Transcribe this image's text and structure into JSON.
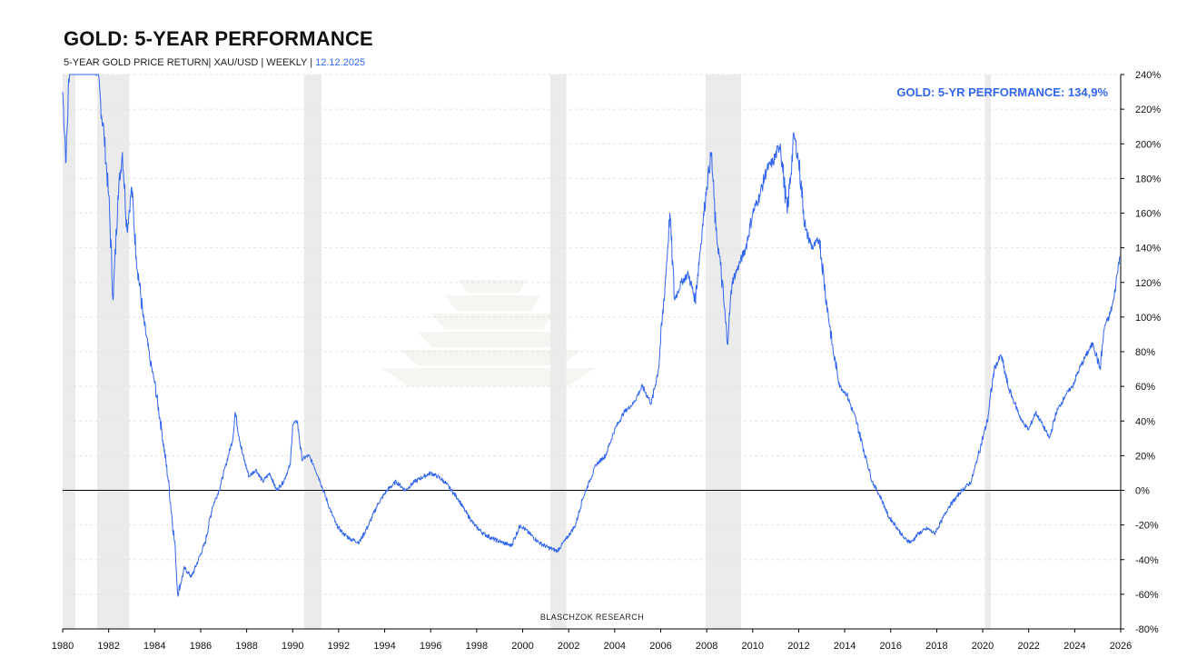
{
  "header": {
    "title": "GOLD: 5-YEAR PERFORMANCE",
    "subtitle": "5-YEAR GOLD PRICE RETURN| XAU/USD | WEEKLY |",
    "date": "12.12.2025"
  },
  "credit": "BLASCHZOK   RESEARCH",
  "colors": {
    "series": "#3366ee",
    "recession": "#ebebeb",
    "axis": "#000000"
  },
  "chart_data": {
    "type": "line",
    "title": "GOLD: 5-YEAR PERFORMANCE",
    "frequency": "weekly",
    "xlim": [
      1980,
      2026
    ],
    "ylim": [
      -80,
      240
    ],
    "yunit": "%",
    "x_ticks": [
      "1980",
      "1982",
      "1984",
      "1986",
      "1988",
      "1990",
      "1992",
      "1994",
      "1996",
      "1998",
      "2000",
      "2002",
      "2004",
      "2006",
      "2008",
      "2010",
      "2012",
      "2014",
      "2016",
      "2018",
      "2020",
      "2022",
      "2024",
      "2026"
    ],
    "y_ticks": [
      "240%",
      "220%",
      "200%",
      "180%",
      "160%",
      "140%",
      "120%",
      "100%",
      "80%",
      "60%",
      "40%",
      "20%",
      "0%",
      "-20%",
      "-40%",
      "-60%",
      "-80%"
    ],
    "grid": true,
    "zero_line": true,
    "annotation": "GOLD: 5-YR PERFORMANCE: 134,9%",
    "last_value": 134.9,
    "recessions": [
      [
        1980.0,
        1980.55
      ],
      [
        1981.5,
        1982.9
      ],
      [
        1990.5,
        1991.25
      ],
      [
        2001.2,
        2001.9
      ],
      [
        2007.95,
        2009.5
      ],
      [
        2020.1,
        2020.35
      ]
    ],
    "series": [
      {
        "points": [
          [
            1980.0,
            230
          ],
          [
            1980.15,
            190
          ],
          [
            1980.3,
            250
          ],
          [
            1980.5,
            245
          ],
          [
            1981.0,
            255
          ],
          [
            1981.5,
            242
          ],
          [
            1981.8,
            205
          ],
          [
            1982.0,
            170
          ],
          [
            1982.2,
            110
          ],
          [
            1982.4,
            170
          ],
          [
            1982.6,
            195
          ],
          [
            1982.8,
            150
          ],
          [
            1983.0,
            175
          ],
          [
            1983.2,
            135
          ],
          [
            1983.5,
            100
          ],
          [
            1983.8,
            75
          ],
          [
            1984.0,
            62
          ],
          [
            1984.3,
            35
          ],
          [
            1984.6,
            5
          ],
          [
            1984.9,
            -35
          ],
          [
            1985.0,
            -60
          ],
          [
            1985.3,
            -45
          ],
          [
            1985.6,
            -50
          ],
          [
            1985.9,
            -40
          ],
          [
            1986.2,
            -30
          ],
          [
            1986.5,
            -10
          ],
          [
            1986.8,
            0
          ],
          [
            1987.1,
            15
          ],
          [
            1987.4,
            30
          ],
          [
            1987.5,
            45
          ],
          [
            1987.8,
            22
          ],
          [
            1988.1,
            8
          ],
          [
            1988.4,
            12
          ],
          [
            1988.7,
            5
          ],
          [
            1989.0,
            10
          ],
          [
            1989.3,
            0
          ],
          [
            1989.6,
            5
          ],
          [
            1989.9,
            15
          ],
          [
            1990.0,
            38
          ],
          [
            1990.2,
            40
          ],
          [
            1990.4,
            18
          ],
          [
            1990.7,
            20
          ],
          [
            1990.9,
            15
          ],
          [
            1991.2,
            5
          ],
          [
            1991.6,
            -10
          ],
          [
            1991.9,
            -20
          ],
          [
            1992.2,
            -25
          ],
          [
            1992.5,
            -28
          ],
          [
            1992.9,
            -30
          ],
          [
            1993.3,
            -20
          ],
          [
            1993.7,
            -8
          ],
          [
            1994.1,
            0
          ],
          [
            1994.5,
            5
          ],
          [
            1994.9,
            0
          ],
          [
            1995.3,
            5
          ],
          [
            1995.7,
            8
          ],
          [
            1996.0,
            10
          ],
          [
            1996.3,
            8
          ],
          [
            1996.6,
            5
          ],
          [
            1996.9,
            0
          ],
          [
            1997.2,
            -5
          ],
          [
            1997.5,
            -12
          ],
          [
            1997.9,
            -20
          ],
          [
            1998.3,
            -25
          ],
          [
            1998.7,
            -28
          ],
          [
            1999.1,
            -30
          ],
          [
            1999.5,
            -32
          ],
          [
            1999.9,
            -20
          ],
          [
            2000.3,
            -25
          ],
          [
            2000.7,
            -30
          ],
          [
            2001.1,
            -33
          ],
          [
            2001.5,
            -35
          ],
          [
            2001.9,
            -28
          ],
          [
            2002.3,
            -20
          ],
          [
            2002.6,
            -5
          ],
          [
            2002.9,
            5
          ],
          [
            2003.2,
            15
          ],
          [
            2003.6,
            20
          ],
          [
            2004.0,
            35
          ],
          [
            2004.4,
            45
          ],
          [
            2004.8,
            50
          ],
          [
            2005.2,
            60
          ],
          [
            2005.6,
            50
          ],
          [
            2005.9,
            70
          ],
          [
            2006.2,
            120
          ],
          [
            2006.4,
            160
          ],
          [
            2006.6,
            110
          ],
          [
            2006.9,
            120
          ],
          [
            2007.2,
            125
          ],
          [
            2007.5,
            110
          ],
          [
            2007.8,
            150
          ],
          [
            2008.0,
            175
          ],
          [
            2008.2,
            195
          ],
          [
            2008.4,
            150
          ],
          [
            2008.6,
            130
          ],
          [
            2008.9,
            85
          ],
          [
            2009.1,
            120
          ],
          [
            2009.4,
            130
          ],
          [
            2009.7,
            140
          ],
          [
            2010.0,
            160
          ],
          [
            2010.3,
            170
          ],
          [
            2010.6,
            185
          ],
          [
            2010.9,
            190
          ],
          [
            2011.2,
            200
          ],
          [
            2011.5,
            160
          ],
          [
            2011.8,
            205
          ],
          [
            2012.0,
            190
          ],
          [
            2012.3,
            150
          ],
          [
            2012.6,
            140
          ],
          [
            2012.9,
            145
          ],
          [
            2013.2,
            110
          ],
          [
            2013.5,
            80
          ],
          [
            2013.8,
            60
          ],
          [
            2014.1,
            55
          ],
          [
            2014.5,
            40
          ],
          [
            2014.9,
            20
          ],
          [
            2015.2,
            5
          ],
          [
            2015.6,
            -5
          ],
          [
            2015.9,
            -15
          ],
          [
            2016.2,
            -20
          ],
          [
            2016.6,
            -28
          ],
          [
            2016.9,
            -30
          ],
          [
            2017.2,
            -25
          ],
          [
            2017.6,
            -22
          ],
          [
            2017.9,
            -25
          ],
          [
            2018.2,
            -18
          ],
          [
            2018.5,
            -10
          ],
          [
            2018.8,
            -5
          ],
          [
            2019.1,
            0
          ],
          [
            2019.5,
            5
          ],
          [
            2019.8,
            20
          ],
          [
            2020.2,
            40
          ],
          [
            2020.5,
            70
          ],
          [
            2020.8,
            78
          ],
          [
            2021.1,
            60
          ],
          [
            2021.4,
            50
          ],
          [
            2021.7,
            40
          ],
          [
            2022.0,
            35
          ],
          [
            2022.3,
            45
          ],
          [
            2022.6,
            38
          ],
          [
            2022.9,
            30
          ],
          [
            2023.2,
            45
          ],
          [
            2023.6,
            55
          ],
          [
            2023.9,
            60
          ],
          [
            2024.2,
            70
          ],
          [
            2024.5,
            78
          ],
          [
            2024.8,
            85
          ],
          [
            2025.1,
            70
          ],
          [
            2025.3,
            95
          ],
          [
            2025.5,
            100
          ],
          [
            2025.7,
            110
          ],
          [
            2025.85,
            125
          ],
          [
            2025.95,
            134.9
          ]
        ]
      }
    ]
  }
}
